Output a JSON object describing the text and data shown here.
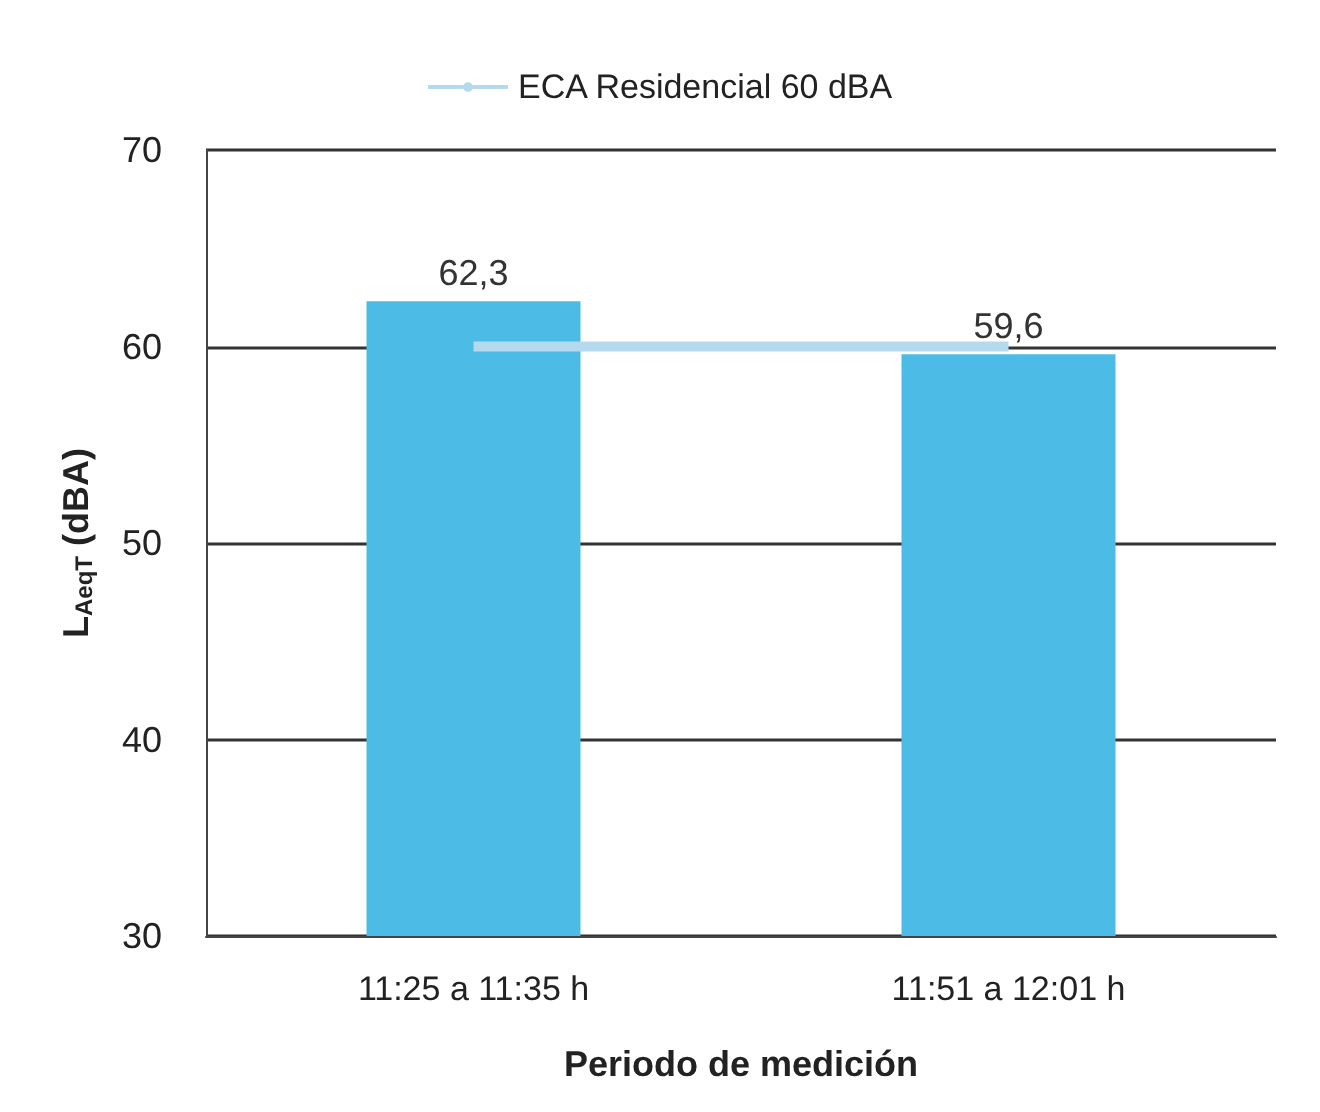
{
  "chart_data": {
    "type": "bar",
    "categories": [
      "11:25 a 11:35 h",
      "11:51 a 12:01 h"
    ],
    "series": [
      {
        "color": "#4cbbe6",
        "values": [
          62.3,
          59.6
        ],
        "value_labels": [
          "62,3",
          "59,6"
        ]
      },
      {
        "type": "line",
        "name": "ECA Residencial 60 dBA",
        "color": "#b5daee",
        "values": [
          60,
          60
        ]
      }
    ],
    "xlabel": "Periodo de medición",
    "ylabel": "L$_{AeqT}$ (dBA)",
    "ylim": [
      30,
      70
    ],
    "yticks": [
      30,
      40,
      50,
      60,
      70
    ],
    "grid": "y",
    "legend": "top",
    "marker": "none"
  }
}
